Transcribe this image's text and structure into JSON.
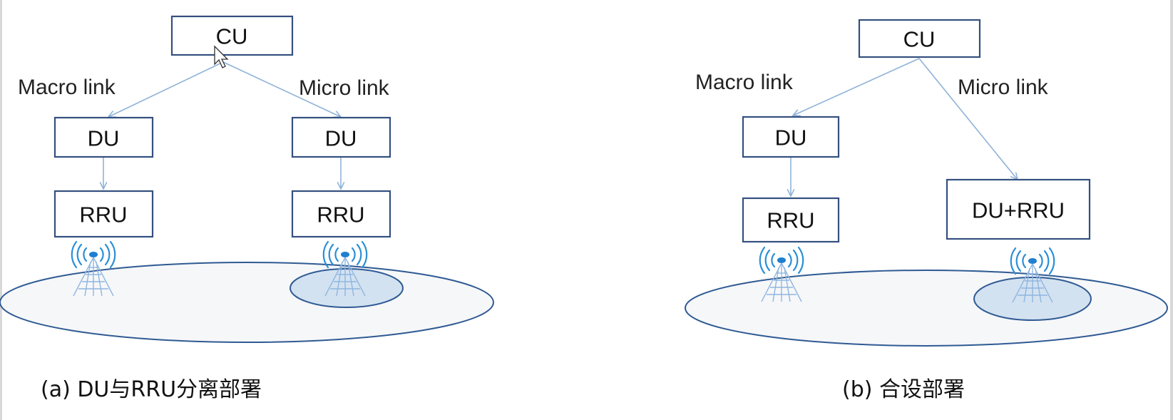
{
  "colors": {
    "box_border": "#34507f",
    "link_line": "#8fb2d9",
    "coverage_outline": "#2f5a93",
    "small_cell_fill": "#d3e2f1",
    "signal": "#2a8fd6"
  },
  "icons": [
    "antenna-tower-icon",
    "mouse-cursor-icon"
  ],
  "diagram_a": {
    "cu": "CU",
    "macro_link": "Macro link",
    "micro_link": "Micro link",
    "du_left": "DU",
    "du_right": "DU",
    "rru_left": "RRU",
    "rru_right": "RRU",
    "caption": "(a) DU与RRU分离部署"
  },
  "diagram_b": {
    "cu": "CU",
    "macro_link": "Macro link",
    "micro_link": "Micro link",
    "du_left": "DU",
    "rru_left": "RRU",
    "du_rru": "DU+RRU",
    "caption": "(b) 合设部署"
  }
}
